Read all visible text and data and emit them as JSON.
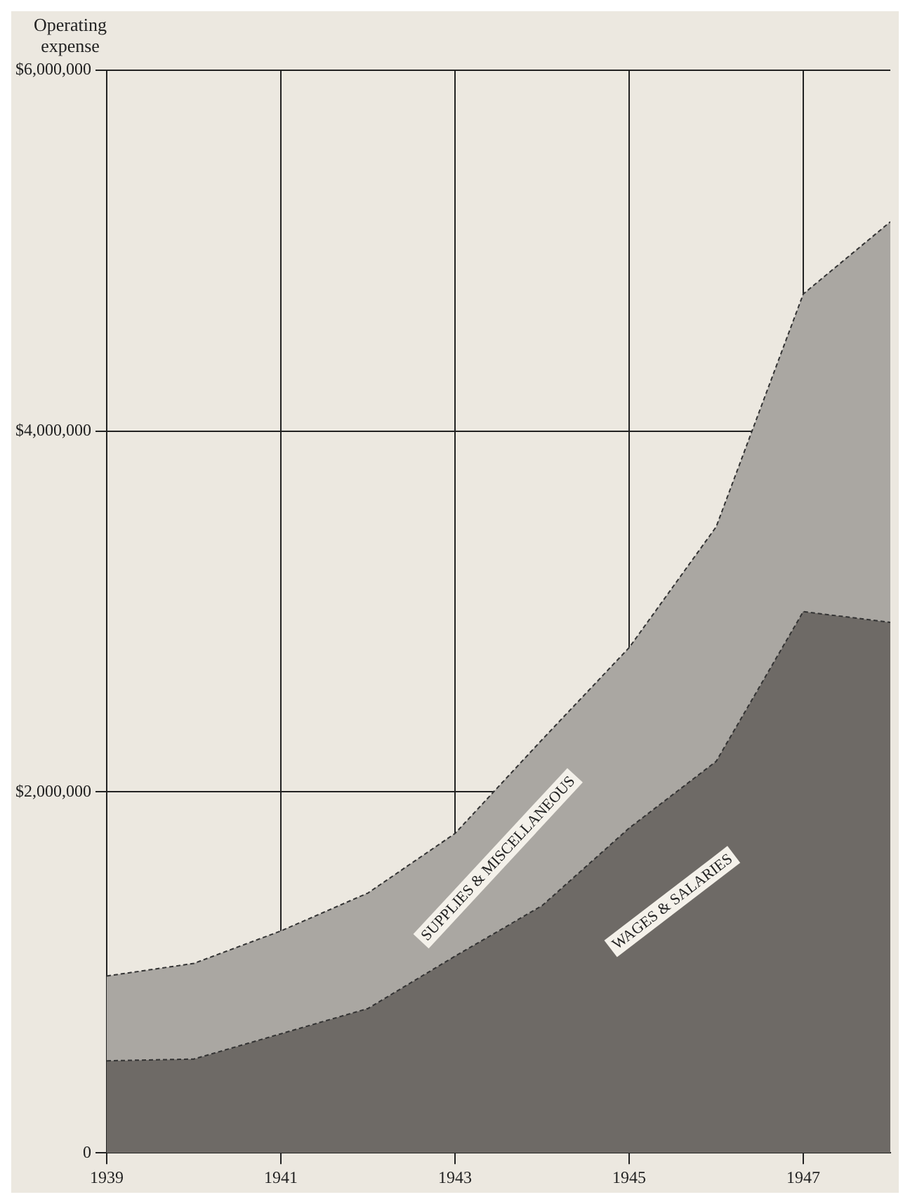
{
  "chart_data": {
    "type": "area",
    "ylabel": "Operating expense",
    "stacked": true,
    "x": [
      1939,
      1940,
      1941,
      1942,
      1943,
      1944,
      1945,
      1946,
      1947,
      1948
    ],
    "series": [
      {
        "name": "WAGES & SALARIES",
        "color": "#6e6a66",
        "values": [
          510000.0,
          520000.0,
          660000.0,
          800000.0,
          1090000.0,
          1370000.0,
          1800000.0,
          2170000.0,
          3000000.0,
          2940000.0
        ]
      },
      {
        "name": "SUPPLIES & MISCELLANEOUS",
        "color": "#aaa7a2",
        "values": [
          470000.0,
          530000.0,
          570000.0,
          640000.0,
          680000.0,
          920000.0,
          1000000.0,
          1300000.0,
          1760000.0,
          2220000.0
        ]
      }
    ],
    "xlim": [
      1939,
      1948
    ],
    "xticks": [
      1939,
      1941,
      1943,
      1945,
      1947
    ],
    "ylim": [
      0,
      6000000
    ],
    "yticks": [
      {
        "value": 0,
        "label": "0"
      },
      {
        "value": 2000000,
        "label": "$2,000,000"
      },
      {
        "value": 4000000,
        "label": "$4,000,000"
      },
      {
        "value": 6000000,
        "label": "$6,000,000"
      }
    ],
    "grid": true,
    "legend": false
  }
}
